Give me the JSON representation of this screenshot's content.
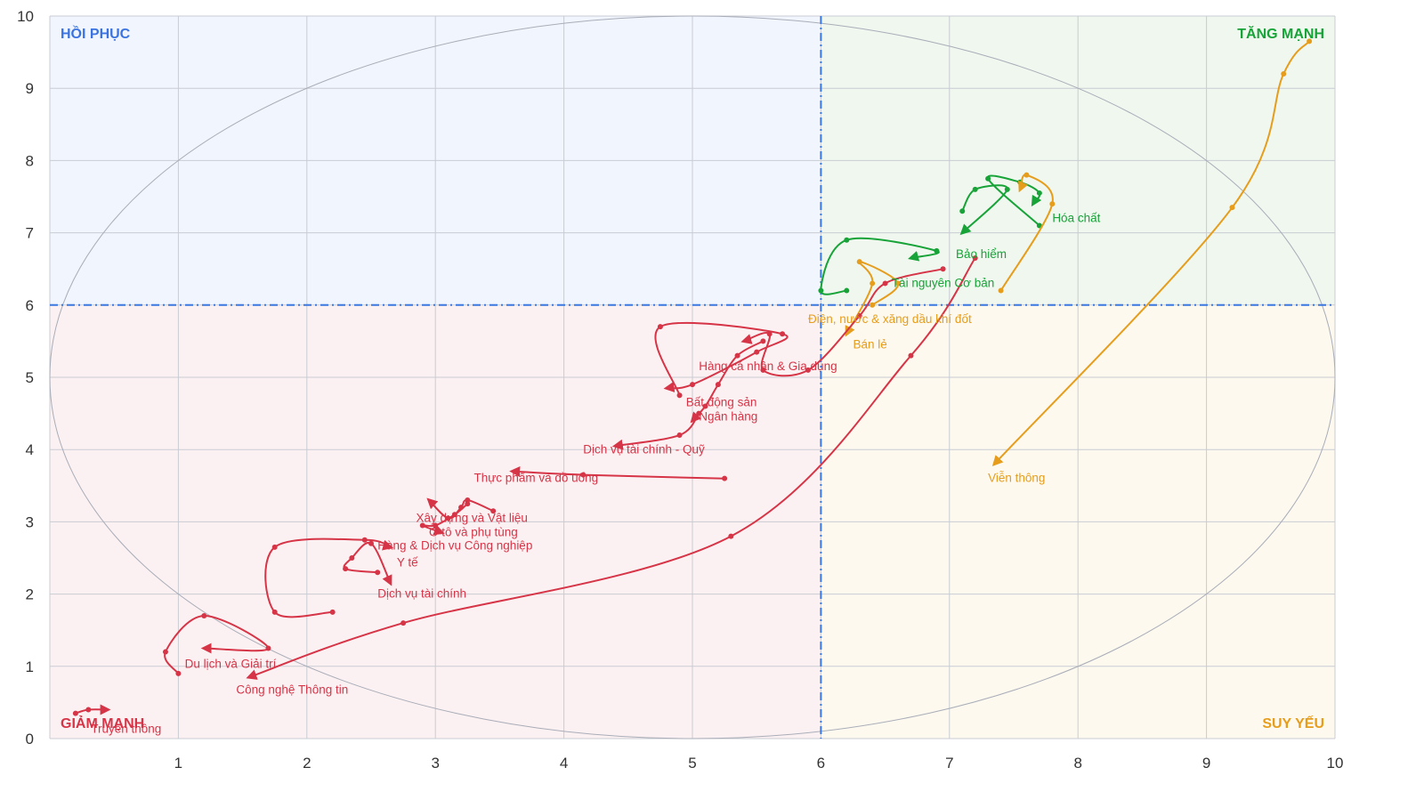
{
  "chart_data": {
    "type": "line",
    "title": "",
    "xlabel": "",
    "ylabel": "",
    "xlim": [
      0,
      10
    ],
    "ylim": [
      0,
      10
    ],
    "grid": true,
    "x_ticks": [
      "1",
      "2",
      "3",
      "4",
      "5",
      "6",
      "7",
      "8",
      "9",
      "10"
    ],
    "y_ticks": [
      "0",
      "1",
      "2",
      "3",
      "4",
      "5",
      "6",
      "7",
      "8",
      "9",
      "10"
    ],
    "thresholds": {
      "x": 6,
      "y": 6
    },
    "quadrants": {
      "top_left": {
        "label": "HỒI PHỤC",
        "color": "#3b73e0",
        "fill": "#f1f5fd"
      },
      "top_right": {
        "label": "TĂNG MẠNH",
        "color": "#17a337",
        "fill": "#eff7ef"
      },
      "bottom_left": {
        "label": "GIẢM MẠNH",
        "color": "#d63447",
        "fill": "#fcf1f2"
      },
      "bottom_right": {
        "label": "SUY YẾU",
        "color": "#e69d1c",
        "fill": "#fdf9ef"
      }
    },
    "colors": {
      "strong": "#17a337",
      "weak": "#e69d1c",
      "down": "#d63447"
    },
    "series": [
      {
        "name": "Hóa chất",
        "color": "strong",
        "points": [
          [
            7.7,
            7.1
          ],
          [
            7.3,
            7.75
          ],
          [
            7.55,
            7.7
          ],
          [
            7.7,
            7.55
          ],
          [
            7.65,
            7.4
          ]
        ]
      },
      {
        "name": "Bảo hiểm",
        "color": "strong",
        "points": [
          [
            7.1,
            7.3
          ],
          [
            7.2,
            7.6
          ],
          [
            7.45,
            7.6
          ],
          [
            7.1,
            7.0
          ]
        ]
      },
      {
        "name": "Tài nguyên Cơ bản",
        "color": "strong",
        "points": [
          [
            6.2,
            6.2
          ],
          [
            6.0,
            6.2
          ],
          [
            6.2,
            6.9
          ],
          [
            6.9,
            6.75
          ],
          [
            6.7,
            6.65
          ]
        ]
      },
      {
        "name": "Viễn thông",
        "color": "weak",
        "points": [
          [
            9.8,
            9.65
          ],
          [
            9.6,
            9.2
          ],
          [
            9.2,
            7.35
          ],
          [
            7.35,
            3.8
          ]
        ]
      },
      {
        "name": "Điện, nước & xăng dầu khí đốt",
        "color": "weak",
        "points": [
          [
            7.4,
            6.2
          ],
          [
            7.8,
            7.4
          ],
          [
            7.6,
            7.8
          ],
          [
            7.55,
            7.6
          ]
        ]
      },
      {
        "name": "Bán lẻ",
        "color": "weak",
        "points": [
          [
            6.4,
            6.0
          ],
          [
            6.6,
            6.3
          ],
          [
            6.3,
            6.6
          ],
          [
            6.4,
            6.3
          ],
          [
            6.2,
            5.6
          ]
        ]
      },
      {
        "name": "Công nghệ Thông tin",
        "color": "down",
        "points": [
          [
            7.2,
            6.65
          ],
          [
            6.7,
            5.3
          ],
          [
            5.3,
            2.8
          ],
          [
            2.75,
            1.6
          ],
          [
            1.55,
            0.85
          ]
        ]
      },
      {
        "name": "Hàng cá nhân & Gia dụng",
        "color": "down",
        "points": [
          [
            6.95,
            6.5
          ],
          [
            6.5,
            6.3
          ],
          [
            6.3,
            5.85
          ],
          [
            5.9,
            5.1
          ],
          [
            5.55,
            5.1
          ],
          [
            5.6,
            5.6
          ],
          [
            5.4,
            5.5
          ]
        ]
      },
      {
        "name": "Bất động sản",
        "color": "down",
        "points": [
          [
            4.9,
            4.75
          ],
          [
            4.75,
            5.7
          ],
          [
            5.7,
            5.6
          ],
          [
            5.5,
            5.35
          ],
          [
            5.0,
            4.9
          ],
          [
            4.8,
            4.85
          ]
        ]
      },
      {
        "name": "Ngân hàng",
        "color": "down",
        "points": [
          [
            5.55,
            5.5
          ],
          [
            5.35,
            5.3
          ],
          [
            5.2,
            4.9
          ],
          [
            5.1,
            4.6
          ],
          [
            5.0,
            4.4
          ]
        ]
      },
      {
        "name": "Dịch vụ tài chính - Quỹ",
        "color": "down",
        "points": [
          [
            5.05,
            4.5
          ],
          [
            4.9,
            4.2
          ],
          [
            4.4,
            4.05
          ]
        ]
      },
      {
        "name": "Thực phẩm và đồ uống",
        "color": "down",
        "points": [
          [
            5.25,
            3.6
          ],
          [
            4.15,
            3.65
          ],
          [
            3.6,
            3.7
          ]
        ]
      },
      {
        "name": "Xây dựng và Vật liệu",
        "color": "down",
        "points": [
          [
            3.45,
            3.15
          ],
          [
            3.25,
            3.3
          ],
          [
            3.2,
            3.2
          ],
          [
            3.1,
            3.05
          ],
          [
            2.95,
            3.3
          ]
        ]
      },
      {
        "name": "Ô tô và phụ tùng",
        "color": "down",
        "points": [
          [
            3.25,
            3.25
          ],
          [
            3.15,
            3.1
          ],
          [
            3.0,
            2.95
          ],
          [
            2.9,
            2.95
          ],
          [
            3.05,
            2.85
          ]
        ]
      },
      {
        "name": "Hàng & Dịch vụ Công nghiệp",
        "color": "down",
        "points": [
          [
            2.2,
            1.75
          ],
          [
            1.75,
            1.75
          ],
          [
            1.75,
            2.65
          ],
          [
            2.45,
            2.75
          ],
          [
            2.65,
            2.65
          ]
        ]
      },
      {
        "name": "Y tế",
        "color": "down",
        "points": [
          [
            2.55,
            2.3
          ],
          [
            2.3,
            2.35
          ],
          [
            2.35,
            2.5
          ],
          [
            2.5,
            2.7
          ],
          [
            2.65,
            2.15
          ]
        ]
      },
      {
        "name": "Du lịch và Giải trí",
        "color": "down",
        "points": [
          [
            1.0,
            0.9
          ],
          [
            0.9,
            1.2
          ],
          [
            1.2,
            1.7
          ],
          [
            1.7,
            1.25
          ],
          [
            1.2,
            1.25
          ]
        ]
      },
      {
        "name": "Truyền thông",
        "color": "down",
        "points": [
          [
            0.2,
            0.35
          ],
          [
            0.3,
            0.4
          ],
          [
            0.45,
            0.4
          ]
        ]
      }
    ],
    "labels": [
      {
        "text": "Hóa chất",
        "x": 7.8,
        "y": 7.15,
        "color": "strong"
      },
      {
        "text": "Bảo hiểm",
        "x": 7.05,
        "y": 6.65,
        "color": "strong"
      },
      {
        "text": "Tài nguyên Cơ bản",
        "x": 6.55,
        "y": 6.25,
        "color": "strong"
      },
      {
        "text": "Điện, nước & xăng dầu khí đốt",
        "x": 5.9,
        "y": 5.75,
        "color": "weak"
      },
      {
        "text": "Bán lẻ",
        "x": 6.25,
        "y": 5.4,
        "color": "weak"
      },
      {
        "text": "Viễn thông",
        "x": 7.3,
        "y": 3.55,
        "color": "weak"
      },
      {
        "text": "Hàng cá nhân & Gia dụng",
        "x": 5.05,
        "y": 5.1,
        "color": "down"
      },
      {
        "text": "Bất động sản",
        "x": 4.95,
        "y": 4.6,
        "color": "down"
      },
      {
        "text": "Ngân hàng",
        "x": 5.05,
        "y": 4.4,
        "color": "down"
      },
      {
        "text": "Dịch vụ tài chính - Quỹ",
        "x": 4.15,
        "y": 3.95,
        "color": "down"
      },
      {
        "text": "Thực phẩm và đồ uống",
        "x": 3.3,
        "y": 3.55,
        "color": "down"
      },
      {
        "text": "Xây dựng và Vật liệu",
        "x": 2.85,
        "y": 3.0,
        "color": "down"
      },
      {
        "text": "Ô tô và phụ tùng",
        "x": 2.95,
        "y": 2.8,
        "color": "down"
      },
      {
        "text": "Hàng & Dịch vụ Công nghiệp",
        "x": 2.55,
        "y": 2.62,
        "color": "down"
      },
      {
        "text": "Y tế",
        "x": 2.7,
        "y": 2.38,
        "color": "down"
      },
      {
        "text": "Dịch vụ tài chính",
        "x": 2.55,
        "y": 1.95,
        "color": "down"
      },
      {
        "text": "Du lịch và Giải trí",
        "x": 1.05,
        "y": 0.98,
        "color": "down"
      },
      {
        "text": "Công nghệ Thông tin",
        "x": 1.45,
        "y": 0.62,
        "color": "down"
      },
      {
        "text": "Truyền thông",
        "x": 0.32,
        "y": 0.08,
        "color": "down"
      }
    ]
  }
}
